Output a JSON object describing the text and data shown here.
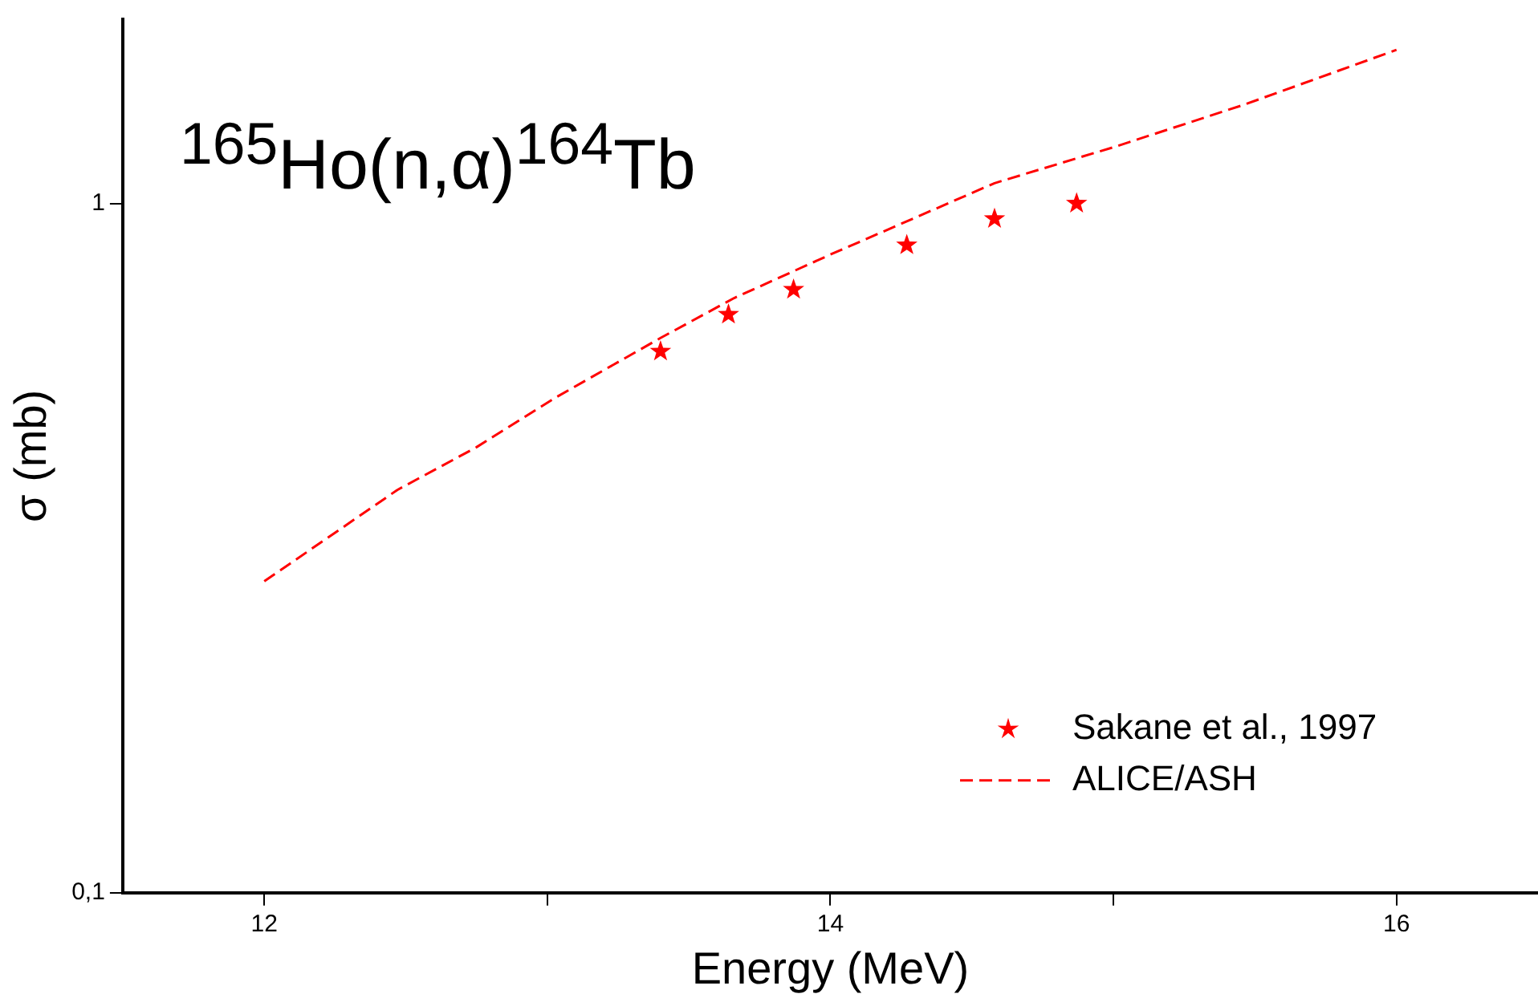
{
  "chart_data": {
    "type": "scatter",
    "xlabel": "Energy (MeV)",
    "ylabel": "σ (mb)",
    "annotations": [
      "$^{165}$Ho(n,α)$^{164}$Tb"
    ],
    "series": [
      {
        "name": "Sakane et al., 1997",
        "type": "scatter",
        "color": "#ff0000",
        "marker": "star",
        "x": [
          13.4,
          13.64,
          13.87,
          14.27,
          14.58,
          14.87
        ],
        "values": [
          0.61,
          0.69,
          0.75,
          0.87,
          0.95,
          1.0
        ]
      },
      {
        "name": "ALICE/ASH",
        "type": "line",
        "color": "#ff0000",
        "marker": "none",
        "line_style": "dashed",
        "x": [
          12,
          12.47,
          12.75,
          13.03,
          13.4,
          13.66,
          14,
          14.58,
          15.01,
          15.46,
          16
        ],
        "values": [
          0.283,
          0.384,
          0.443,
          0.523,
          0.638,
          0.729,
          0.843,
          1.07,
          1.21,
          1.39,
          1.67
        ]
      }
    ],
    "xlim": [
      11.5,
      16.5
    ],
    "xticks": [
      12,
      {
        "value": 13,
        "label": null
      },
      14,
      {
        "value": 15,
        "label": null
      },
      16
    ],
    "ylim": [
      0.1,
      1.85
    ],
    "yticks": [
      {
        "value": 0.1,
        "label": "0,1"
      },
      1
    ],
    "log": "y",
    "grid": false,
    "legend": "bottom right"
  }
}
